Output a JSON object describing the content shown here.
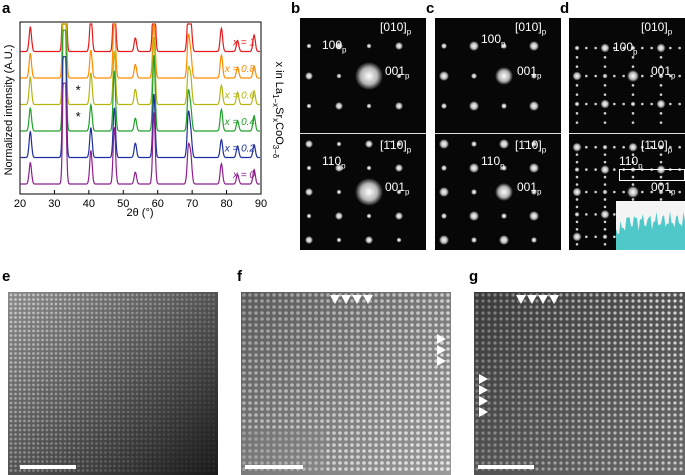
{
  "labels": {
    "a": "a",
    "b": "b",
    "c": "c",
    "d": "d",
    "e": "e",
    "f": "f",
    "g": "g"
  },
  "chart_data": {
    "type": "line",
    "ylabel": "Normalized intensity (A.U.)",
    "xlabel": "2θ (°)",
    "xlim": [
      20,
      90
    ],
    "xticks": [
      20,
      30,
      40,
      50,
      60,
      70,
      80,
      90
    ],
    "legend_title": "x in La1−xSrxCoO3−δ",
    "peaks": [
      23.0,
      32.8,
      33.1,
      40.6,
      47.4,
      53.5,
      58.9,
      68.9,
      69.6,
      78.5,
      83.2,
      88.0
    ],
    "peak_heights": [
      0.18,
      1.0,
      0.55,
      0.22,
      0.42,
      0.1,
      0.5,
      0.28,
      0.18,
      0.15,
      0.08,
      0.1
    ],
    "series": [
      {
        "name": "x = 1",
        "color": "#e41a1c"
      },
      {
        "name": "x = 0.8",
        "color": "#ff8c00"
      },
      {
        "name": "x = 0.6",
        "color": "#b5b512"
      },
      {
        "name": "x = 0.4",
        "color": "#22a02c"
      },
      {
        "name": "x = 0.2",
        "color": "#1f2fa0"
      },
      {
        "name": "x = 0",
        "color": "#8e1f8e"
      }
    ],
    "impurity_marks": [
      {
        "series": "x = 0.6",
        "x": 36.9,
        "symbol": "*"
      },
      {
        "series": "x = 0.4",
        "x": 36.9,
        "symbol": "*"
      }
    ]
  },
  "diffraction": {
    "b_top": {
      "zone": "[010]",
      "spot1": "100",
      "spot2": "001"
    },
    "b_bot": {
      "zone": "[1̄10]",
      "spot1": "110",
      "spot2": "001"
    },
    "c_top": {
      "zone": "[010]",
      "spot1": "100",
      "spot2": "001"
    },
    "c_bot": {
      "zone": "[1̄10]",
      "spot1": "110",
      "spot2": "001"
    },
    "d_top": {
      "zone": "[010]",
      "spot1": "100",
      "spot2": "001"
    },
    "d_bot": {
      "zone": "[1̄10]",
      "spot1": "110",
      "spot2": "001"
    },
    "sub": "p",
    "inset_color": "#4ec8c8"
  }
}
